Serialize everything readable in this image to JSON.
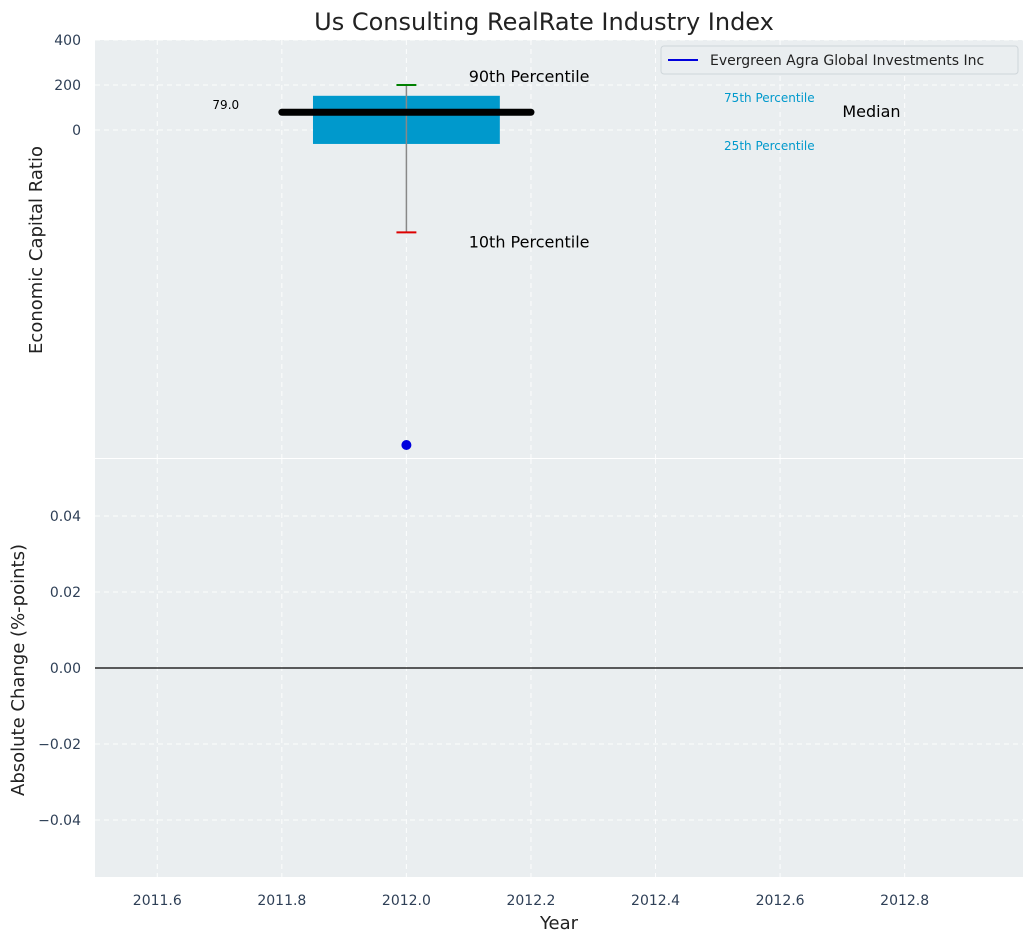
{
  "chart_data": {
    "type": "box",
    "title": "Us Consulting RealRate Industry Index",
    "top": {
      "ylabel": "Economic Capital Ratio",
      "yticks": [
        400,
        200,
        0
      ],
      "box": {
        "x": 2012.0,
        "p10": -455,
        "p25": -62,
        "median": 79,
        "p75": 152,
        "p90": 200,
        "median_label": "79.0"
      },
      "company_point": {
        "x": 2012.0,
        "y": -1400
      },
      "annotations": {
        "p90": "90th Percentile",
        "p10": "10th Percentile",
        "p75": "75th Percentile",
        "p25": "25th Percentile",
        "median": "Median"
      },
      "legend": {
        "label": "Evergreen Agra Global Investments Inc",
        "position": "top-right"
      }
    },
    "bottom": {
      "ylabel": "Absolute Change (%-points)",
      "yticks": [
        0.04,
        0.02,
        0.0,
        -0.02,
        -0.04
      ],
      "ytick_labels": [
        "0.04",
        "0.02",
        "0.00",
        "−0.02",
        "−0.04"
      ],
      "ylim": [
        -0.055,
        0.055
      ],
      "xlabel": "Year"
    },
    "xticks": [
      2011.6,
      2011.8,
      2012.0,
      2012.2,
      2012.4,
      2012.6,
      2012.8
    ],
    "xtick_labels": [
      "2011.6",
      "2011.8",
      "2012.0",
      "2012.2",
      "2012.4",
      "2012.6",
      "2012.8"
    ],
    "xlim": [
      2011.5,
      2012.99
    ],
    "grid": true,
    "colors": {
      "background": "#eaeef0",
      "box": "#0099cc",
      "median": "#000000",
      "whisker": "#888888",
      "p90_cap": "#008000",
      "p10_cap": "#dd0000",
      "company": "#0000dd",
      "percentile_text": "#0099cc",
      "zero_line": "#000000"
    }
  }
}
